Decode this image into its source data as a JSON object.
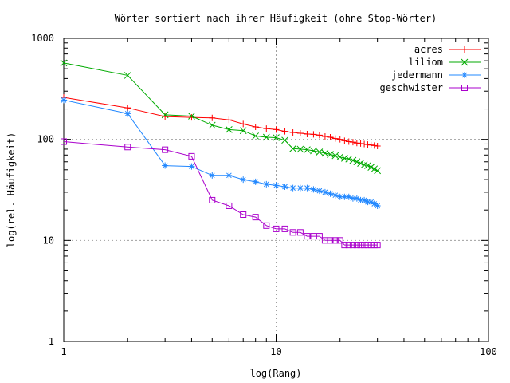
{
  "chart_data": {
    "type": "line",
    "title": "Wörter sortiert nach ihrer Häufigkeit (ohne Stop-Wörter)",
    "xlabel": "log(Rang)",
    "ylabel": "log(rel. Häufigkeit)",
    "x_scale": "log",
    "y_scale": "log",
    "xlim": [
      1,
      100
    ],
    "ylim": [
      1,
      1000
    ],
    "x_ticks": [
      1,
      10,
      100
    ],
    "x_tick_labels": [
      "1",
      "10",
      "100"
    ],
    "y_ticks": [
      1,
      10,
      100,
      1000
    ],
    "y_tick_labels": [
      "1",
      "10",
      "100",
      "1000"
    ],
    "grid": "dotted, at major decades",
    "legend_position": "top-right",
    "series": [
      {
        "name": "acres",
        "color": "#ff0000",
        "marker": "plus",
        "x": [
          1,
          2,
          3,
          4,
          5,
          6,
          7,
          8,
          9,
          10,
          11,
          12,
          13,
          14,
          15,
          16,
          17,
          18,
          19,
          20,
          21,
          22,
          23,
          24,
          25,
          26,
          27,
          28,
          29,
          30
        ],
        "values": [
          260,
          205,
          168,
          165,
          163,
          156,
          142,
          133,
          128,
          125,
          120,
          117,
          115,
          113,
          112,
          110,
          107,
          105,
          102,
          100,
          97,
          95,
          94,
          92,
          91,
          90,
          89,
          88,
          87,
          86
        ]
      },
      {
        "name": "liliom",
        "color": "#00aa00",
        "marker": "cross",
        "x": [
          1,
          2,
          3,
          4,
          5,
          6,
          7,
          8,
          9,
          10,
          11,
          12,
          13,
          14,
          15,
          16,
          17,
          18,
          19,
          20,
          21,
          22,
          23,
          24,
          25,
          26,
          27,
          28,
          29,
          30
        ],
        "values": [
          570,
          430,
          175,
          170,
          138,
          125,
          122,
          108,
          105,
          104,
          98,
          81,
          80,
          79,
          77,
          75,
          73,
          71,
          69,
          67,
          65,
          64,
          62,
          60,
          58,
          56,
          55,
          53,
          51,
          49
        ]
      },
      {
        "name": "jedermann",
        "color": "#2288ff",
        "marker": "star",
        "x": [
          1,
          2,
          3,
          4,
          5,
          6,
          7,
          8,
          9,
          10,
          11,
          12,
          13,
          14,
          15,
          16,
          17,
          18,
          19,
          20,
          21,
          22,
          23,
          24,
          25,
          26,
          27,
          28,
          29,
          30
        ],
        "values": [
          245,
          180,
          55,
          54,
          44,
          44,
          40,
          38,
          36,
          35,
          34,
          33,
          33,
          33,
          32,
          31,
          30,
          29,
          28,
          27,
          27,
          27,
          26,
          26,
          25,
          25,
          24,
          24,
          23,
          22
        ]
      },
      {
        "name": "geschwister",
        "color": "#aa00cc",
        "marker": "square",
        "x": [
          1,
          2,
          3,
          4,
          5,
          6,
          7,
          8,
          9,
          10,
          11,
          12,
          13,
          14,
          15,
          16,
          17,
          18,
          19,
          20,
          21,
          22,
          23,
          24,
          25,
          26,
          27,
          28,
          29,
          30
        ],
        "values": [
          95,
          84,
          79,
          68,
          25,
          22,
          18,
          17,
          14,
          13,
          13,
          12,
          12,
          11,
          11,
          11,
          10,
          10,
          10,
          10,
          9,
          9,
          9,
          9,
          9,
          9,
          9,
          9,
          9,
          9
        ]
      }
    ]
  }
}
